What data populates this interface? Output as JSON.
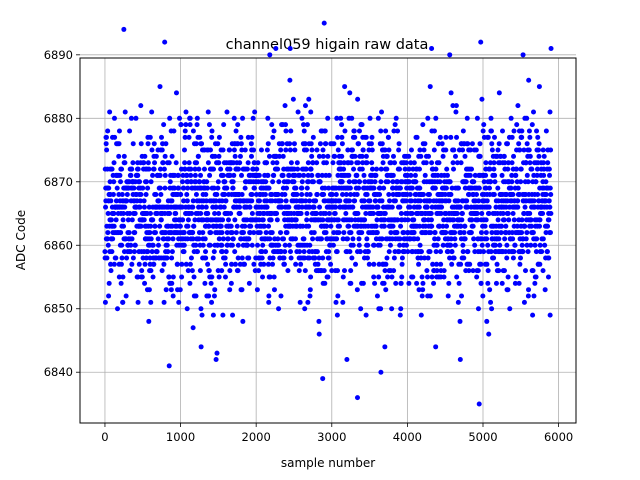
{
  "chart_data": {
    "type": "scatter",
    "title": "channel059 higain raw data",
    "xlabel": "sample number",
    "ylabel": "ADC Code",
    "xlim": [
      -330,
      6230
    ],
    "ylim": [
      6832,
      6889.5
    ],
    "xticks": [
      0,
      1000,
      2000,
      3000,
      4000,
      5000,
      6000
    ],
    "xtick_labels": [
      "0",
      "1000",
      "2000",
      "3000",
      "4000",
      "5000",
      "6000"
    ],
    "yticks": [
      6840,
      6850,
      6860,
      6870,
      6880,
      6890
    ],
    "ytick_labels": [
      "6840",
      "6850",
      "6860",
      "6870",
      "6880",
      "6890"
    ],
    "grid": true,
    "legend": "none",
    "marker_color": "#0000ff",
    "n_samples": 5900,
    "distribution": {
      "center": 6866,
      "core_range": [
        6848,
        6882
      ]
    },
    "outliers": [
      {
        "x": 250,
        "y": 6894
      },
      {
        "x": 790,
        "y": 6892
      },
      {
        "x": 850,
        "y": 6841
      },
      {
        "x": 2450,
        "y": 6891
      },
      {
        "x": 2880,
        "y": 6839
      },
      {
        "x": 2900,
        "y": 6895
      },
      {
        "x": 3340,
        "y": 6836
      },
      {
        "x": 3650,
        "y": 6840
      },
      {
        "x": 4950,
        "y": 6835
      },
      {
        "x": 4970,
        "y": 6892
      },
      {
        "x": 5900,
        "y": 6891
      },
      {
        "x": 5530,
        "y": 6890
      },
      {
        "x": 4320,
        "y": 6891
      },
      {
        "x": 4560,
        "y": 6890
      },
      {
        "x": 2180,
        "y": 6890
      },
      {
        "x": 2260,
        "y": 6891
      },
      {
        "x": 3200,
        "y": 6842
      },
      {
        "x": 4700,
        "y": 6842
      },
      {
        "x": 1470,
        "y": 6842
      }
    ]
  }
}
